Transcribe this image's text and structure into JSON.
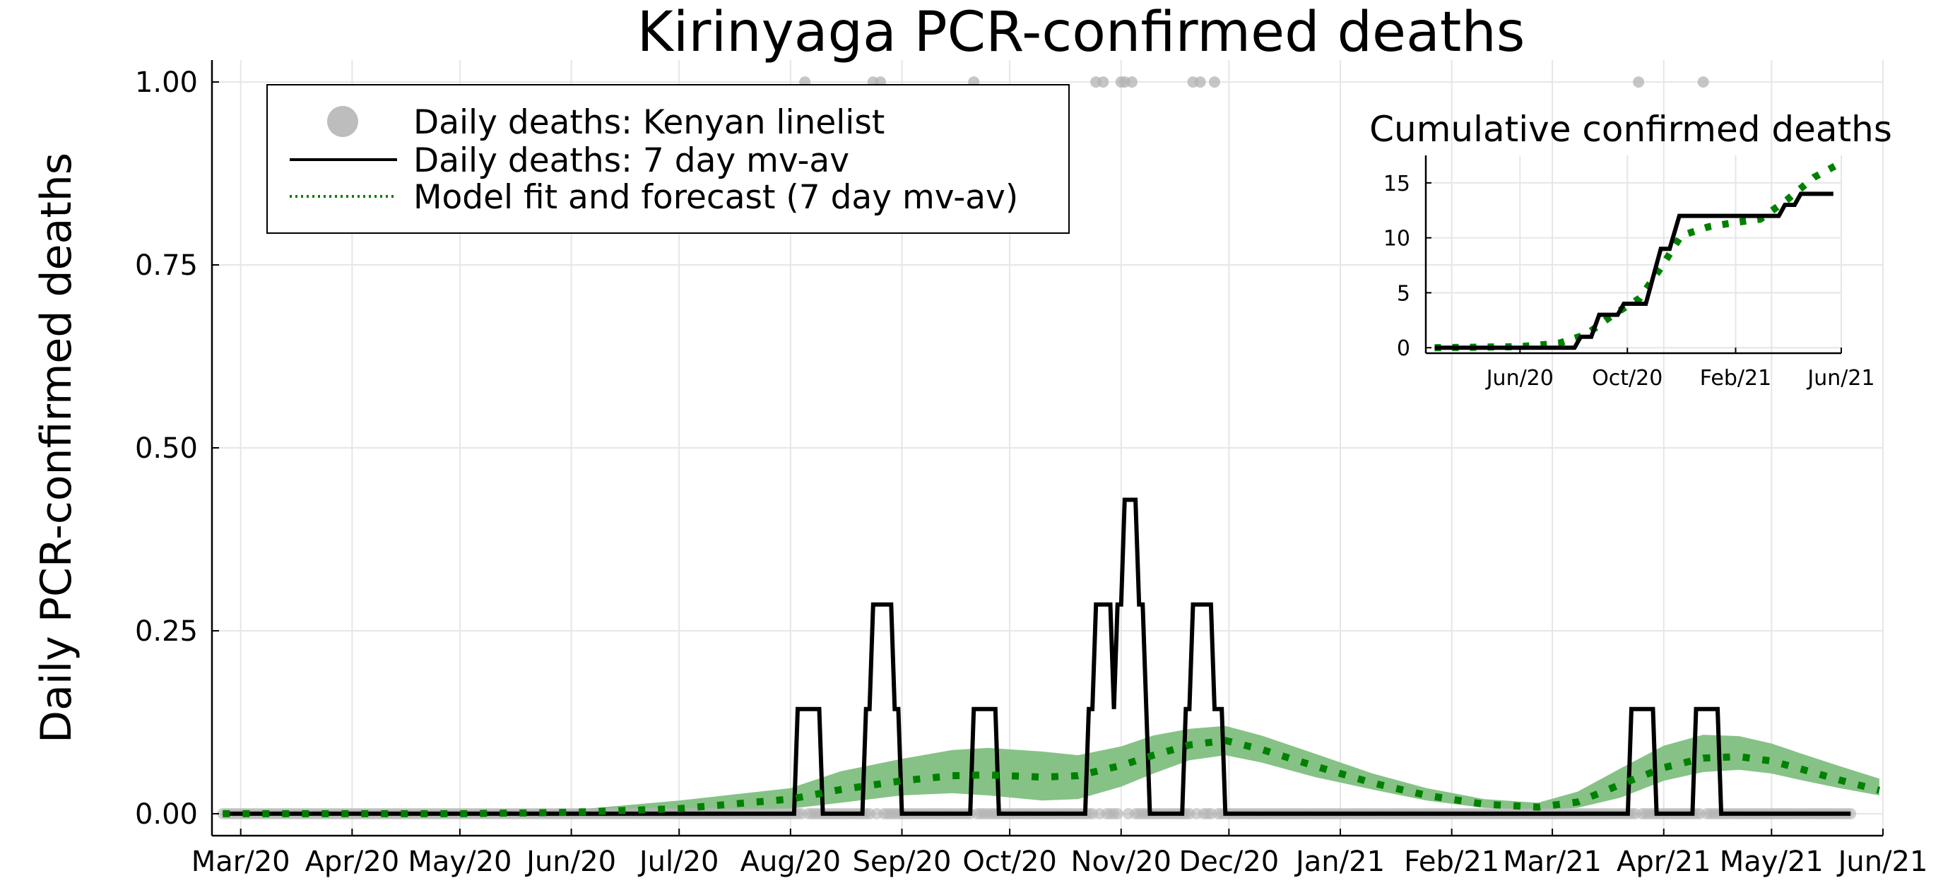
{
  "chart_data": [
    {
      "type": "line",
      "title": "Kirinyaga PCR-confirmed deaths",
      "xlabel": "",
      "ylabel": "Daily PCR-confirmed deaths",
      "x_tick_labels": [
        "Mar/20",
        "Apr/20",
        "May/20",
        "Jun/20",
        "Jul/20",
        "Aug/20",
        "Sep/20",
        "Oct/20",
        "Nov/20",
        "Dec/20",
        "Jan/21",
        "Feb/21",
        "Mar/21",
        "Apr/21",
        "May/21",
        "Jun/21"
      ],
      "x_tick_dates": [
        "2020-03-01",
        "2020-04-01",
        "2020-05-01",
        "2020-06-01",
        "2020-07-01",
        "2020-08-01",
        "2020-09-01",
        "2020-10-01",
        "2020-11-01",
        "2020-12-01",
        "2021-01-01",
        "2021-02-01",
        "2021-03-01",
        "2021-04-01",
        "2021-05-01",
        "2021-06-01"
      ],
      "y_tick_labels": [
        "0.00",
        "0.25",
        "0.50",
        "0.75",
        "1.00"
      ],
      "xlim": [
        "2020-02-22",
        "2021-06-01"
      ],
      "ylim": [
        -0.03,
        1.03
      ],
      "grid": true,
      "legend_position": "top-left",
      "legend": [
        "Daily deaths: Kenyan linelist",
        "Daily deaths: 7 day mv-av",
        "Model fit and forecast (7 day mv-av)"
      ],
      "series": [
        {
          "name": "Daily deaths: Kenyan linelist",
          "kind": "scatter",
          "color": "#b3b3b3",
          "x_range": [
            "2020-02-25",
            "2021-05-23"
          ],
          "one_dates": [
            "2020-08-05",
            "2020-08-24",
            "2020-08-26",
            "2020-09-21",
            "2020-10-25",
            "2020-10-27",
            "2020-11-01",
            "2020-11-02",
            "2020-11-04",
            "2020-11-21",
            "2020-11-23",
            "2020-11-27",
            "2021-03-25",
            "2021-04-12"
          ],
          "baseline_value": 0
        },
        {
          "name": "Daily deaths: 7 day mv-av",
          "kind": "line",
          "color": "#000000",
          "points": [
            [
              "2020-02-25",
              0
            ],
            [
              "2020-08-02",
              0
            ],
            [
              "2020-08-03",
              0.143
            ],
            [
              "2020-08-09",
              0.143
            ],
            [
              "2020-08-10",
              0
            ],
            [
              "2020-08-21",
              0
            ],
            [
              "2020-08-22",
              0.143
            ],
            [
              "2020-08-23",
              0.143
            ],
            [
              "2020-08-24",
              0.286
            ],
            [
              "2020-08-29",
              0.286
            ],
            [
              "2020-08-30",
              0.143
            ],
            [
              "2020-08-31",
              0.143
            ],
            [
              "2020-09-01",
              0
            ],
            [
              "2020-09-20",
              0
            ],
            [
              "2020-09-21",
              0.143
            ],
            [
              "2020-09-27",
              0.143
            ],
            [
              "2020-09-28",
              0
            ],
            [
              "2020-10-22",
              0
            ],
            [
              "2020-10-23",
              0.143
            ],
            [
              "2020-10-24",
              0.143
            ],
            [
              "2020-10-25",
              0.286
            ],
            [
              "2020-10-29",
              0.286
            ],
            [
              "2020-10-30",
              0.143
            ],
            [
              "2020-10-31",
              0.286
            ],
            [
              "2020-11-01",
              0.286
            ],
            [
              "2020-11-02",
              0.429
            ],
            [
              "2020-11-05",
              0.429
            ],
            [
              "2020-11-06",
              0.286
            ],
            [
              "2020-11-07",
              0.286
            ],
            [
              "2020-11-08",
              0.143
            ],
            [
              "2020-11-09",
              0
            ],
            [
              "2020-11-18",
              0
            ],
            [
              "2020-11-19",
              0.143
            ],
            [
              "2020-11-20",
              0.143
            ],
            [
              "2020-11-21",
              0.286
            ],
            [
              "2020-11-26",
              0.286
            ],
            [
              "2020-11-27",
              0.143
            ],
            [
              "2020-11-29",
              0.143
            ],
            [
              "2020-11-30",
              0
            ],
            [
              "2021-03-22",
              0
            ],
            [
              "2021-03-23",
              0.143
            ],
            [
              "2021-03-29",
              0.143
            ],
            [
              "2021-03-30",
              0
            ],
            [
              "2021-04-09",
              0
            ],
            [
              "2021-04-10",
              0.143
            ],
            [
              "2021-04-16",
              0.143
            ],
            [
              "2021-04-17",
              0
            ],
            [
              "2021-05-23",
              0
            ]
          ]
        },
        {
          "name": "Model fit and forecast (7 day mv-av)",
          "kind": "line",
          "style": "dotted",
          "color": "#008000",
          "band_color": "#7fbf7f",
          "points": [
            [
              "2020-02-25",
              0,
              0,
              0
            ],
            [
              "2020-05-01",
              0,
              0,
              0.003
            ],
            [
              "2020-06-01",
              0.002,
              0,
              0.005
            ],
            [
              "2020-07-01",
              0.007,
              0.002,
              0.018
            ],
            [
              "2020-08-01",
              0.02,
              0.007,
              0.035
            ],
            [
              "2020-08-15",
              0.033,
              0.015,
              0.058
            ],
            [
              "2020-09-01",
              0.045,
              0.025,
              0.075
            ],
            [
              "2020-09-15",
              0.052,
              0.028,
              0.087
            ],
            [
              "2020-09-25",
              0.053,
              0.025,
              0.09
            ],
            [
              "2020-10-10",
              0.05,
              0.018,
              0.085
            ],
            [
              "2020-10-20",
              0.052,
              0.02,
              0.08
            ],
            [
              "2020-11-01",
              0.066,
              0.037,
              0.092
            ],
            [
              "2020-11-10",
              0.08,
              0.055,
              0.107
            ],
            [
              "2020-11-20",
              0.094,
              0.073,
              0.116
            ],
            [
              "2020-11-30",
              0.1,
              0.08,
              0.12
            ],
            [
              "2020-12-10",
              0.088,
              0.07,
              0.107
            ],
            [
              "2020-12-25",
              0.065,
              0.05,
              0.082
            ],
            [
              "2021-01-10",
              0.042,
              0.033,
              0.055
            ],
            [
              "2021-01-25",
              0.025,
              0.018,
              0.035
            ],
            [
              "2021-02-10",
              0.013,
              0.008,
              0.02
            ],
            [
              "2021-02-25",
              0.009,
              0.005,
              0.015
            ],
            [
              "2021-03-08",
              0.016,
              0.008,
              0.03
            ],
            [
              "2021-03-20",
              0.04,
              0.022,
              0.062
            ],
            [
              "2021-04-01",
              0.063,
              0.045,
              0.093
            ],
            [
              "2021-04-12",
              0.076,
              0.057,
              0.108
            ],
            [
              "2021-04-22",
              0.078,
              0.06,
              0.106
            ],
            [
              "2021-05-01",
              0.072,
              0.055,
              0.096
            ],
            [
              "2021-05-10",
              0.06,
              0.045,
              0.081
            ],
            [
              "2021-05-20",
              0.046,
              0.035,
              0.065
            ],
            [
              "2021-05-31",
              0.032,
              0.025,
              0.048
            ]
          ]
        }
      ]
    },
    {
      "type": "line",
      "title": "Cumulative confirmed deaths",
      "xlabel": "",
      "ylabel": "",
      "x_tick_labels": [
        "Jun/20",
        "Oct/20",
        "Feb/21",
        "Jun/21"
      ],
      "x_tick_dates": [
        "2020-06-01",
        "2020-10-01",
        "2021-02-01",
        "2021-06-01"
      ],
      "y_tick_labels": [
        "0",
        "5",
        "10",
        "15"
      ],
      "xlim": [
        "2020-02-15",
        "2021-06-01"
      ],
      "ylim": [
        -0.5,
        17.5
      ],
      "grid": true,
      "series": [
        {
          "name": "Daily deaths: 7 day mv-av",
          "kind": "line",
          "color": "#000000",
          "points": [
            [
              "2020-02-25",
              0
            ],
            [
              "2020-08-02",
              0
            ],
            [
              "2020-08-09",
              1
            ],
            [
              "2020-08-21",
              1
            ],
            [
              "2020-08-30",
              3
            ],
            [
              "2020-09-20",
              3
            ],
            [
              "2020-09-27",
              4
            ],
            [
              "2020-10-22",
              4
            ],
            [
              "2020-11-08",
              9
            ],
            [
              "2020-11-18",
              9
            ],
            [
              "2020-11-29",
              12
            ],
            [
              "2021-03-22",
              12
            ],
            [
              "2021-03-29",
              13
            ],
            [
              "2021-04-09",
              13
            ],
            [
              "2021-04-16",
              14
            ],
            [
              "2021-05-23",
              14
            ]
          ]
        },
        {
          "name": "Model fit and forecast (7 day mv-av)",
          "kind": "line",
          "style": "dotted",
          "color": "#008000",
          "points": [
            [
              "2020-02-25",
              0
            ],
            [
              "2020-06-01",
              0.1
            ],
            [
              "2020-07-15",
              0.4
            ],
            [
              "2020-08-15",
              1.2
            ],
            [
              "2020-09-15",
              3
            ],
            [
              "2020-10-15",
              4.5
            ],
            [
              "2020-11-10",
              7.5
            ],
            [
              "2020-12-01",
              10.2
            ],
            [
              "2021-01-01",
              11
            ],
            [
              "2021-02-01",
              11.4
            ],
            [
              "2021-03-01",
              11.7
            ],
            [
              "2021-04-01",
              13.5
            ],
            [
              "2021-05-01",
              15.5
            ],
            [
              "2021-05-31",
              16.8
            ]
          ]
        }
      ]
    }
  ]
}
